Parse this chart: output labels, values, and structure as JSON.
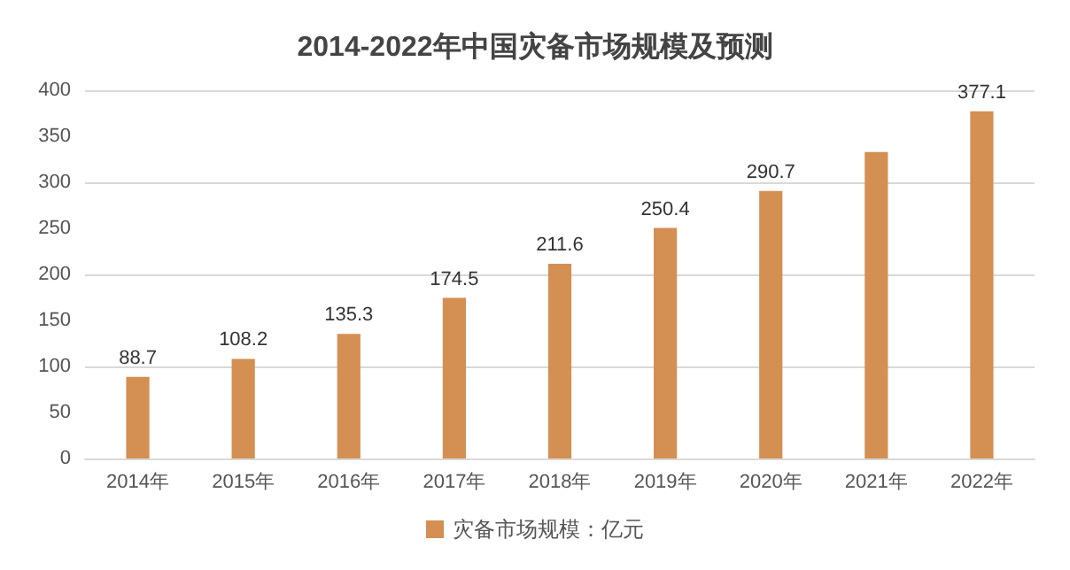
{
  "chart_data": {
    "type": "bar",
    "title": "2014-2022年中国灾备市场规模及预测",
    "categories": [
      "2014年",
      "2015年",
      "2016年",
      "2017年",
      "2018年",
      "2019年",
      "2020年",
      "2021年",
      "2022年"
    ],
    "series": [
      {
        "name": "灾备市场规模：亿元",
        "color": "#d48f52",
        "values": [
          88.7,
          108.2,
          135.3,
          174.5,
          211.6,
          250.4,
          290.7,
          333,
          377.1
        ],
        "value_labels": [
          "88.7",
          "108.2",
          "135.3",
          "174.5",
          "211.6",
          "250.4",
          "290.7",
          null,
          "377.1"
        ]
      }
    ],
    "ylim": [
      0,
      400
    ],
    "yticks": [
      0,
      50,
      100,
      150,
      200,
      250,
      300,
      350,
      400
    ],
    "grid": "y",
    "legend": "bottom"
  }
}
